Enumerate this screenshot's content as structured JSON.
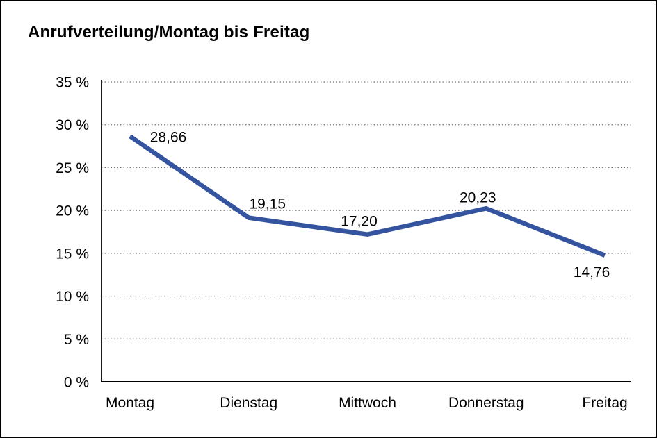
{
  "window": {
    "background_color": "#ffffff",
    "frame_border_color": "#000000"
  },
  "chart_data": {
    "type": "line",
    "title": "Anrufverteilung/Montag bis Freitag",
    "categories": [
      "Montag",
      "Dienstag",
      "Mittwoch",
      "Donnerstag",
      "Freitag"
    ],
    "values": [
      28.66,
      19.15,
      17.2,
      20.23,
      14.76
    ],
    "value_labels": [
      "28,66",
      "19,15",
      "17,20",
      "20,23",
      "14,76"
    ],
    "xlabel": "",
    "ylabel": "",
    "ylim": [
      0,
      35
    ],
    "y_tick_values": [
      0,
      5,
      10,
      15,
      20,
      25,
      30,
      35
    ],
    "y_ticks": [
      "0 %",
      "5 %",
      "10 %",
      "15 %",
      "20 %",
      "25 %",
      "30 %",
      "35 %"
    ],
    "grid": "horizontal-dotted",
    "legend": "none",
    "line_color": "#34549F",
    "axis_color": "#000000",
    "grid_color": "#707070",
    "text_color": "#000000"
  }
}
